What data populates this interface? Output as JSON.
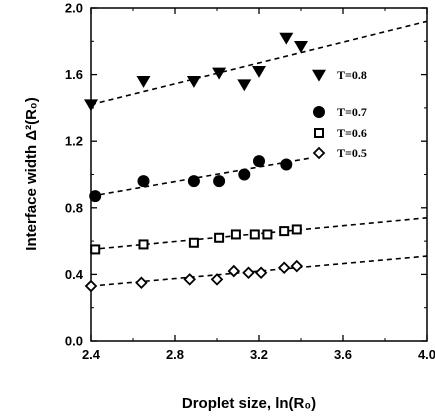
{
  "chart_data": {
    "type": "scatter",
    "xlabel": "Droplet size,  ln(R₀)",
    "ylabel": "Interface width  Δ²(R₀)",
    "xlim": [
      2.4,
      4.0
    ],
    "ylim": [
      0.0,
      2.0
    ],
    "xticks": [
      "2.4",
      "2.8",
      "3.2",
      "3.6",
      "4.0"
    ],
    "yticks": [
      "0.0",
      "0.4",
      "0.8",
      "1.2",
      "1.6",
      "2.0"
    ],
    "legend_position": "right",
    "fit_style": "dashed line",
    "series": [
      {
        "name": "T=0.8",
        "marker": "filled-triangle-down",
        "x": [
          2.4,
          2.65,
          2.89,
          3.01,
          3.13,
          3.2,
          3.33,
          3.4
        ],
        "y": [
          1.42,
          1.56,
          1.56,
          1.61,
          1.54,
          1.62,
          1.82,
          1.77
        ],
        "fit": [
          [
            2.4,
            1.42
          ],
          [
            4.0,
            1.92
          ]
        ]
      },
      {
        "name": "T=0.7",
        "marker": "filled-circle",
        "x": [
          2.42,
          2.65,
          2.89,
          3.01,
          3.13,
          3.2,
          3.33
        ],
        "y": [
          0.87,
          0.96,
          0.96,
          0.96,
          1.0,
          1.08,
          1.06
        ],
        "fit": [
          [
            2.4,
            0.87
          ],
          [
            3.45,
            1.1
          ]
        ]
      },
      {
        "name": "T=0.6",
        "marker": "open-square",
        "x": [
          2.42,
          2.65,
          2.89,
          3.01,
          3.09,
          3.18,
          3.24,
          3.32,
          3.38
        ],
        "y": [
          0.55,
          0.58,
          0.59,
          0.62,
          0.64,
          0.64,
          0.64,
          0.66,
          0.67
        ],
        "fit": [
          [
            2.4,
            0.55
          ],
          [
            4.0,
            0.74
          ]
        ]
      },
      {
        "name": "T=0.5",
        "marker": "open-diamond",
        "x": [
          2.4,
          2.64,
          2.87,
          3.0,
          3.08,
          3.15,
          3.21,
          3.32,
          3.38
        ],
        "y": [
          0.33,
          0.35,
          0.37,
          0.37,
          0.42,
          0.41,
          0.41,
          0.44,
          0.45
        ],
        "fit": [
          [
            2.4,
            0.33
          ],
          [
            4.0,
            0.51
          ]
        ]
      }
    ]
  }
}
